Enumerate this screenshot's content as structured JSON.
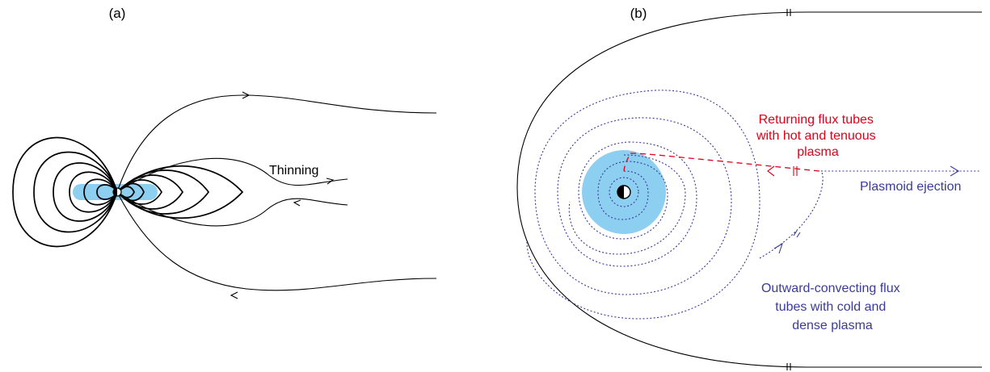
{
  "panels": {
    "a": {
      "label": "(a)",
      "annotation": "Thinning"
    },
    "b": {
      "label": "(b)",
      "returning": [
        "Returning flux tubes",
        "with hot and tenuous",
        "plasma"
      ],
      "plasmoid": "Plasmoid ejection",
      "outward": [
        "Outward-convecting flux",
        "tubes with cold and",
        "dense plasma"
      ]
    }
  },
  "colors": {
    "line": "#000000",
    "plasma_blue": "#8ccff0",
    "convection_blue": "#3b3b9a",
    "return_red": "#e0001a"
  }
}
